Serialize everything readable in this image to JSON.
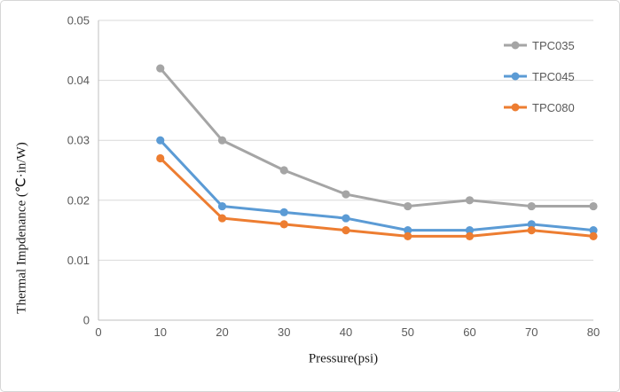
{
  "chart_data": {
    "type": "line",
    "title": "",
    "xlabel": "Pressure(psi)",
    "ylabel": "Thermal Impdenance (℃·in/W)",
    "x": [
      10,
      20,
      30,
      40,
      50,
      60,
      70,
      80
    ],
    "xlim": [
      0,
      80
    ],
    "ylim": [
      0,
      0.05
    ],
    "x_tick_values": [
      0,
      10,
      20,
      30,
      40,
      50,
      60,
      70,
      80
    ],
    "x_tick_labels": [
      "0",
      "10",
      "20",
      "30",
      "40",
      "50",
      "60",
      "70",
      "80"
    ],
    "y_tick_values": [
      0,
      0.01,
      0.02,
      0.03,
      0.04,
      0.05
    ],
    "y_tick_labels": [
      "0",
      "0.01",
      "0.02",
      "0.03",
      "0.04",
      "0.05"
    ],
    "grid": "horizontal",
    "legend_position": "top-right",
    "marker": "circle",
    "series": [
      {
        "name": "TPC035",
        "color": "#a5a5a5",
        "values": [
          0.042,
          0.03,
          0.025,
          0.021,
          0.019,
          0.02,
          0.019,
          0.019
        ]
      },
      {
        "name": "TPC045",
        "color": "#5b9bd5",
        "values": [
          0.03,
          0.019,
          0.018,
          0.017,
          0.015,
          0.015,
          0.016,
          0.015
        ]
      },
      {
        "name": "TPC080",
        "color": "#ed7d31",
        "values": [
          0.027,
          0.017,
          0.016,
          0.015,
          0.014,
          0.014,
          0.015,
          0.014
        ]
      }
    ]
  },
  "styles": {
    "gridline_color": "#d9d9d9",
    "axis_color": "#bfbfbf",
    "tick_text_color": "#595959",
    "axis_title_color": "#1a1a1a",
    "legend_text_color": "#595959",
    "background": "#ffffff"
  }
}
